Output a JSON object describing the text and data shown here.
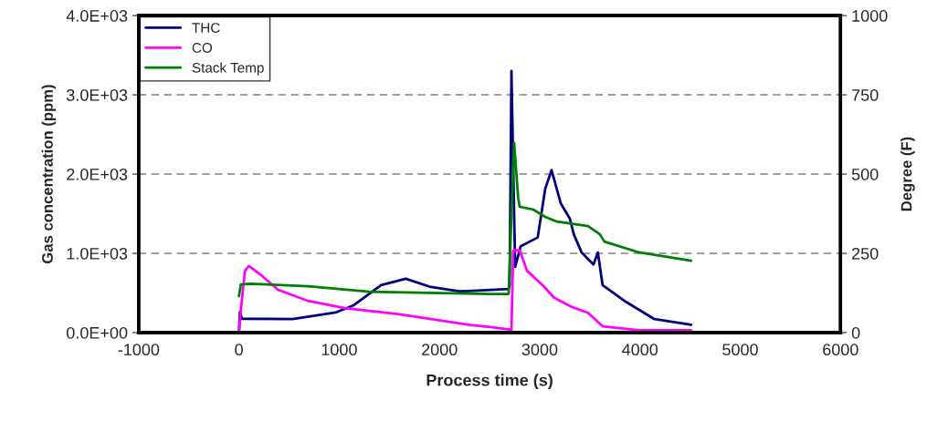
{
  "chart_data": {
    "type": "line",
    "xlabel": "Process time (s)",
    "ylabel": "Gas concentration (ppm)",
    "y2label": "Degree (F)",
    "xlim": [
      -1000,
      6000
    ],
    "xticks": [
      -1000,
      0,
      1000,
      2000,
      3000,
      4000,
      5000,
      6000
    ],
    "ylim": [
      0,
      4000
    ],
    "yticks": [
      {
        "value": 0,
        "label": "0.0E+00"
      },
      {
        "value": 1000,
        "label": "1.0E+03"
      },
      {
        "value": 2000,
        "label": "2.0E+03"
      },
      {
        "value": 3000,
        "label": "3.0E+03"
      },
      {
        "value": 4000,
        "label": "4.0E+03"
      }
    ],
    "y2lim": [
      0,
      1000
    ],
    "y2ticks": [
      0,
      250,
      500,
      750,
      1000
    ],
    "grid": "y",
    "legend": "top left",
    "line_style": "solid",
    "marker": "none",
    "series": [
      {
        "name": "THC",
        "color": "#000080",
        "x": [
          0,
          10,
          30,
          536,
          964,
          1145,
          1418,
          1664,
          1900,
          2210,
          2690,
          2700,
          2718,
          2755,
          2810,
          2980,
          3055,
          3118,
          3210,
          3300,
          3340,
          3418,
          3536,
          3580,
          3627,
          3845,
          4145,
          4510
        ],
        "values": [
          0,
          260,
          175,
          170,
          253,
          345,
          600,
          680,
          580,
          520,
          550,
          600,
          3300,
          830,
          1090,
          1200,
          1815,
          2050,
          1630,
          1440,
          1240,
          1010,
          860,
          1010,
          600,
          400,
          170,
          100
        ]
      },
      {
        "name": "CO",
        "color": "#ff00ff",
        "x": [
          0,
          20,
          60,
          100,
          236,
          390,
          690,
          1055,
          1600,
          2330,
          2510,
          2718,
          2736,
          2800,
          2873,
          3027,
          3145,
          3327,
          3482,
          3627,
          3990,
          4510
        ],
        "values": [
          0,
          300,
          780,
          840,
          710,
          540,
          400,
          310,
          230,
          92,
          70,
          35,
          1035,
          1040,
          780,
          600,
          440,
          320,
          250,
          80,
          30,
          30
        ]
      },
      {
        "name": "Stack Temp",
        "color": "#008000",
        "axis": "y2",
        "x": [
          0,
          20,
          120,
          690,
          1300,
          2510,
          2690,
          2745,
          2785,
          2800,
          2936,
          3055,
          3173,
          3482,
          3600,
          3645,
          3990,
          4510
        ],
        "values": [
          115,
          152,
          154,
          146,
          129,
          122,
          122,
          598,
          425,
          397,
          388,
          365,
          350,
          336,
          310,
          287,
          253,
          227
        ]
      }
    ]
  }
}
